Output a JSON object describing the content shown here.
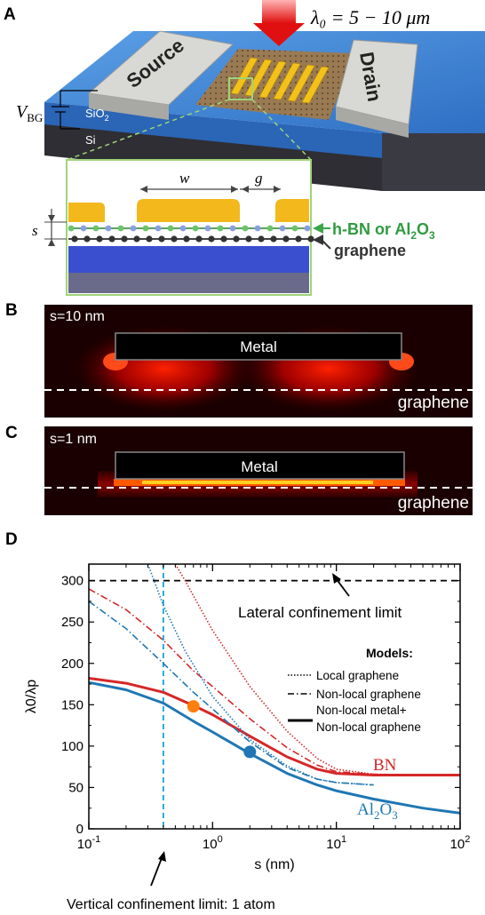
{
  "panel_a": {
    "letter": "A",
    "wavelength_label": "λ₀ = 5 − 10 μm",
    "source_label": "Source",
    "drain_label": "Drain",
    "vbg_label": "V",
    "vbg_sub": "BG",
    "sio2_label": "SiO",
    "sio2_sub": "2",
    "si_label": "Si",
    "inset": {
      "w_label": "w",
      "g_label": "g",
      "s_label": "s",
      "spacer_label_main": "h-BN or Al",
      "spacer_sub1": "2",
      "spacer_o": "O",
      "spacer_sub2": "3",
      "graphene_label": "graphene"
    }
  },
  "panel_b": {
    "letter": "B",
    "s_label": "s=10 nm",
    "metal_label": "Metal",
    "graphene_label": "graphene"
  },
  "panel_c": {
    "letter": "C",
    "s_label": "s=1 nm",
    "metal_label": "Metal",
    "graphene_label": "graphene"
  },
  "panel_d": {
    "letter": "D",
    "lateral_limit_label": "Lateral confinement limit",
    "vertical_limit_label": "Vertical confinement limit: 1 atom",
    "legend_title": "Models:",
    "legend_items": [
      {
        "label": "Local graphene",
        "style": "dotted"
      },
      {
        "label": "Non-local graphene",
        "style": "dashdot"
      },
      {
        "label": "Non-local metal+",
        "style": "solid"
      },
      {
        "label": "Non-local graphene",
        "style": "none"
      }
    ],
    "bn_label": "BN",
    "al2o3_label_main": "Al",
    "al2o3_sub1": "2",
    "al2o3_o": "O",
    "al2o3_sub2": "3"
  },
  "chart_data": {
    "type": "line",
    "xlabel": "s (nm)",
    "ylabel": "λ0/λp",
    "xscale": "log",
    "xlim": [
      0.1,
      100
    ],
    "ylim": [
      0,
      320
    ],
    "x_ticks": [
      "10-1",
      "100",
      "101",
      "102"
    ],
    "y_ticks": [
      0,
      50,
      100,
      150,
      200,
      250,
      300
    ],
    "lateral_limit_y": 300,
    "vertical_limit_x": 0.4,
    "colors": {
      "BN": "#d62728",
      "Al2O3": "#1f77b4",
      "limit_line": "#000000",
      "vertical_line": "#17a3d6",
      "BN_marker": "#ff7f0e"
    },
    "series": [
      {
        "name": "BN",
        "model": "Non-local metal+ Non-local graphene",
        "style": "solid",
        "x": [
          0.1,
          0.2,
          0.4,
          0.7,
          1,
          2,
          4,
          7,
          10,
          20,
          50,
          100
        ],
        "y": [
          182,
          176,
          165,
          149,
          138,
          112,
          87,
          72,
          67,
          65,
          65,
          65
        ]
      },
      {
        "name": "BN",
        "model": "Non-local graphene",
        "style": "dashdot",
        "x": [
          0.1,
          0.2,
          0.4,
          0.7,
          1,
          2,
          4,
          7,
          10,
          20,
          50,
          100
        ],
        "y": [
          290,
          265,
          228,
          191,
          172,
          133,
          98,
          77,
          69,
          66,
          65,
          65
        ]
      },
      {
        "name": "BN",
        "model": "Local graphene",
        "style": "dotted",
        "x": [
          0.5,
          0.6,
          0.8,
          1,
          2,
          4,
          7,
          10,
          20,
          50,
          100
        ],
        "y": [
          320,
          300,
          266,
          240,
          172,
          118,
          85,
          72,
          66,
          65,
          65
        ]
      },
      {
        "name": "Al2O3",
        "model": "Non-local metal+ Non-local graphene",
        "style": "solid",
        "x": [
          0.1,
          0.2,
          0.4,
          0.7,
          1,
          2,
          4,
          7,
          10,
          20,
          50,
          100
        ],
        "y": [
          177,
          168,
          152,
          130,
          117,
          91,
          67,
          53,
          46,
          36,
          25,
          19
        ]
      },
      {
        "name": "Al2O3",
        "model": "Non-local graphene",
        "style": "dashdot",
        "x": [
          0.1,
          0.2,
          0.4,
          0.7,
          1,
          2,
          4,
          7,
          10,
          20
        ],
        "y": [
          275,
          242,
          200,
          165,
          145,
          105,
          74,
          60,
          56,
          53
        ]
      },
      {
        "name": "Al2O3",
        "model": "Local graphene",
        "style": "dotted",
        "x": [
          0.3,
          0.4,
          0.6,
          1,
          2,
          4,
          7,
          10,
          20
        ],
        "y": [
          320,
          270,
          215,
          160,
          108,
          76,
          60,
          56,
          53
        ]
      }
    ],
    "markers": [
      {
        "series": "BN",
        "x": 0.7,
        "y": 148,
        "color": "#ff7f0e"
      },
      {
        "series": "Al2O3",
        "x": 2,
        "y": 93,
        "color": "#1f77b4"
      }
    ]
  }
}
